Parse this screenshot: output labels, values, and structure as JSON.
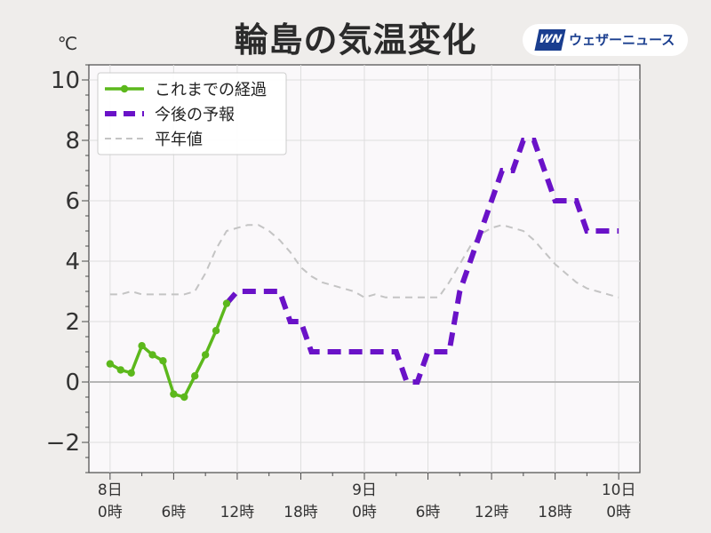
{
  "header": {
    "title": "輪島の気温変化",
    "brand_name": "ウェザーニュース",
    "brand_logo_icon": "weathernews-logo-icon"
  },
  "chart_data": {
    "type": "line",
    "title": "輪島の気温変化",
    "ylabel": "℃",
    "xlabel": "",
    "ylim": [
      -3,
      10.5
    ],
    "y_ticks": [
      -2,
      0,
      2,
      4,
      6,
      8,
      10
    ],
    "y_tick_labels": [
      "−2",
      "0",
      "2",
      "4",
      "6",
      "8",
      "10"
    ],
    "xlim": [
      -2,
      50
    ],
    "x_ticks": [
      0,
      6,
      12,
      18,
      24,
      30,
      36,
      42,
      48
    ],
    "x_tick_labels": [
      [
        "8日",
        "0時"
      ],
      [
        "",
        "6時"
      ],
      [
        "",
        "12時"
      ],
      [
        "",
        "18時"
      ],
      [
        "9日",
        "0時"
      ],
      [
        "",
        "6時"
      ],
      [
        "",
        "12時"
      ],
      [
        "",
        "18時"
      ],
      [
        "10日",
        "0時"
      ]
    ],
    "x_unit": "hours from 8日0時",
    "grid": true,
    "legend_position": "top-left",
    "series": [
      {
        "name": "これまでの経過",
        "style": "solid-markers",
        "color": "#5cb81c",
        "x": [
          0,
          1,
          2,
          3,
          4,
          5,
          6,
          7,
          8,
          9,
          10,
          11
        ],
        "y": [
          0.6,
          0.4,
          0.3,
          1.2,
          0.9,
          0.7,
          -0.4,
          -0.5,
          0.2,
          0.9,
          1.7,
          2.6
        ]
      },
      {
        "name": "今後の予報",
        "style": "dashed-thick",
        "color": "#6a12c8",
        "x": [
          11,
          12,
          13,
          14,
          15,
          16,
          17,
          18,
          19,
          20,
          21,
          22,
          23,
          24,
          25,
          26,
          27,
          28,
          29,
          30,
          31,
          32,
          33,
          34,
          35,
          36,
          37,
          38,
          39,
          40,
          41,
          42,
          43,
          44,
          45,
          46,
          47,
          48
        ],
        "y": [
          2.6,
          3,
          3,
          3,
          3,
          3,
          2,
          2,
          1,
          1,
          1,
          1,
          1,
          1,
          1,
          1,
          1,
          0,
          0,
          1,
          1,
          1,
          3,
          4,
          5,
          6,
          7,
          7,
          8,
          8,
          7,
          6,
          6,
          6,
          5,
          5,
          5,
          5
        ]
      },
      {
        "name": "平年値",
        "style": "dashed-thin",
        "color": "#c4c4c4",
        "x": [
          0,
          1,
          2,
          3,
          4,
          5,
          6,
          7,
          8,
          9,
          10,
          11,
          12,
          13,
          14,
          15,
          16,
          17,
          18,
          19,
          20,
          21,
          22,
          23,
          24,
          25,
          26,
          27,
          28,
          29,
          30,
          31,
          32,
          33,
          34,
          35,
          36,
          37,
          38,
          39,
          40,
          41,
          42,
          43,
          44,
          45,
          46,
          47,
          48
        ],
        "y": [
          2.9,
          2.9,
          3.0,
          2.9,
          2.9,
          2.9,
          2.9,
          2.9,
          3.0,
          3.6,
          4.4,
          5.0,
          5.1,
          5.2,
          5.2,
          5.0,
          4.7,
          4.3,
          3.8,
          3.5,
          3.3,
          3.2,
          3.1,
          3.0,
          2.8,
          2.9,
          2.8,
          2.8,
          2.8,
          2.8,
          2.8,
          2.8,
          3.3,
          3.9,
          4.5,
          4.9,
          5.1,
          5.2,
          5.1,
          5.0,
          4.7,
          4.3,
          3.9,
          3.6,
          3.3,
          3.1,
          3.0,
          2.9,
          2.8
        ]
      }
    ],
    "zero_line_color": "#b5b5b5"
  }
}
